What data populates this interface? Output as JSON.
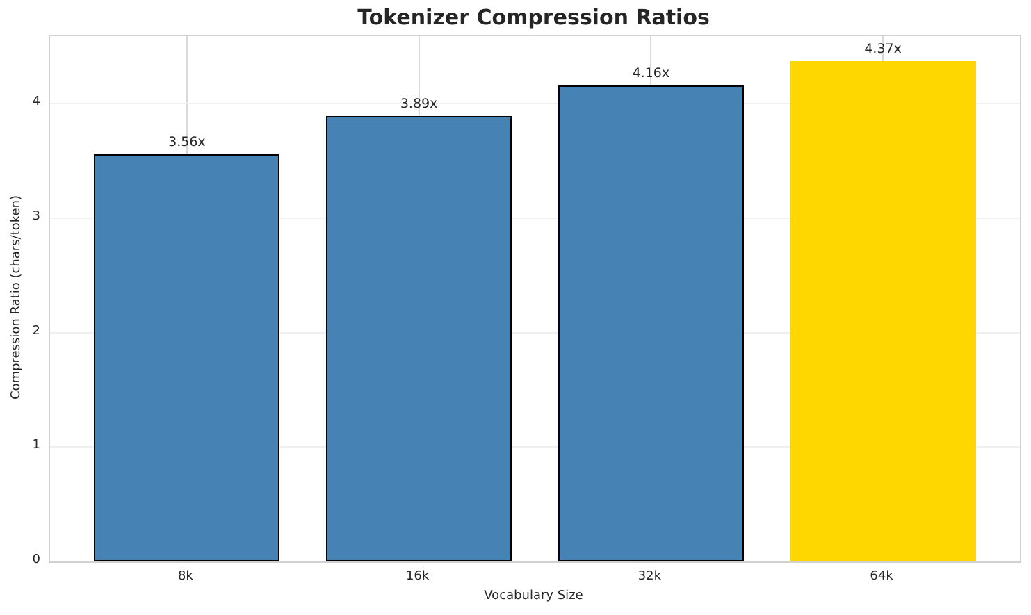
{
  "chart_data": {
    "type": "bar",
    "title": "Tokenizer Compression Ratios",
    "xlabel": "Vocabulary Size",
    "ylabel": "Compression Ratio (chars/token)",
    "categories": [
      "8k",
      "16k",
      "32k",
      "64k"
    ],
    "values": [
      3.56,
      3.89,
      4.16,
      4.37
    ],
    "bar_labels": [
      "3.56x",
      "3.89x",
      "4.16x",
      "4.37x"
    ],
    "yticks": [
      0,
      1,
      2,
      3,
      4
    ],
    "ylim": [
      0,
      4.59
    ],
    "xlim": [
      -0.59,
      3.59
    ],
    "bar_width_units": 0.8,
    "grid": true,
    "legend": "none",
    "highlight_index": 3,
    "colors": {
      "bar_default": "#4682B4",
      "bar_highlight": "#FFD700",
      "bar_edge": "#000000",
      "grid_horizontal": "#f0f0f0",
      "grid_vertical": "#d9d9d9",
      "spine": "#d0d0d0",
      "text": "#262626"
    }
  }
}
